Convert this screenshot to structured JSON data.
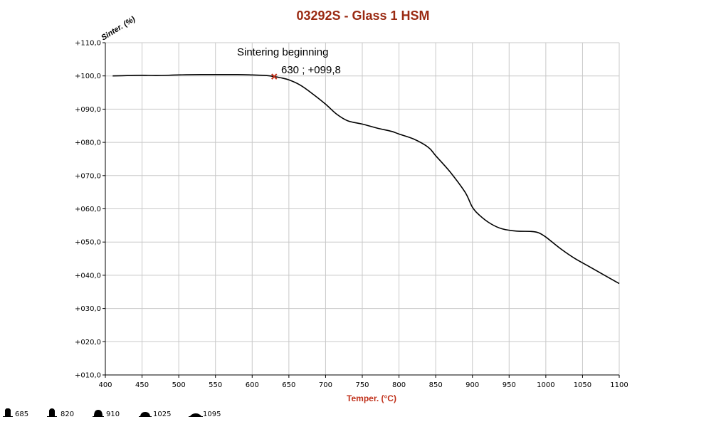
{
  "chart_data": {
    "type": "line",
    "title": "03292S - Glass 1 HSM",
    "xlabel": "Temper. (°C)",
    "ylabel": "Sinter. (%)",
    "xlim": [
      400,
      1100
    ],
    "ylim": [
      10,
      110
    ],
    "x_ticks": [
      400,
      450,
      500,
      550,
      600,
      650,
      700,
      750,
      800,
      850,
      900,
      950,
      1000,
      1050,
      1100
    ],
    "x_tick_labels": [
      "400",
      "450",
      "500",
      "550",
      "600",
      "650",
      "700",
      "750",
      "800",
      "850",
      "900",
      "950",
      "1000",
      "1050",
      "1100"
    ],
    "y_ticks": [
      10,
      20,
      30,
      40,
      50,
      60,
      70,
      80,
      90,
      100,
      110
    ],
    "y_tick_labels": [
      "+010,0",
      "+020,0",
      "+030,0",
      "+040,0",
      "+050,0",
      "+060,0",
      "+070,0",
      "+080,0",
      "+090,0",
      "+100,0",
      "+110,0"
    ],
    "grid": true,
    "series": [
      {
        "color": "#000000",
        "x": [
          410,
          430,
          450,
          470,
          500,
          530,
          550,
          580,
          600,
          620,
          630,
          640,
          650,
          665,
          680,
          700,
          715,
          730,
          750,
          770,
          790,
          800,
          820,
          840,
          850,
          870,
          890,
          900,
          910,
          925,
          940,
          960,
          980,
          990,
          1000,
          1020,
          1040,
          1060,
          1080,
          1100
        ],
        "y": [
          100.0,
          100.1,
          100.2,
          100.1,
          100.3,
          100.4,
          100.4,
          100.4,
          100.3,
          100.1,
          99.8,
          99.4,
          98.8,
          97.3,
          95.0,
          91.5,
          88.5,
          86.5,
          85.5,
          84.3,
          83.3,
          82.5,
          81.0,
          78.5,
          76.0,
          71.0,
          65.0,
          60.5,
          58.0,
          55.5,
          54.0,
          53.3,
          53.2,
          52.8,
          51.5,
          48.0,
          45.0,
          42.5,
          40.0,
          37.5
        ]
      }
    ],
    "annotation": {
      "x": 630,
      "y": 99.8,
      "marker_color": "#c0301a",
      "label": "Sintering beginning",
      "value_label": "630 ; +099,8"
    },
    "legend": {
      "placement": "bottom-left",
      "items": [
        "685",
        "820",
        "910",
        "1025",
        "1095"
      ]
    },
    "colors": {
      "title": "#9a2a12",
      "xlabel": "#c0301a",
      "grid": "#c8c8c8",
      "axis": "#000000"
    }
  }
}
